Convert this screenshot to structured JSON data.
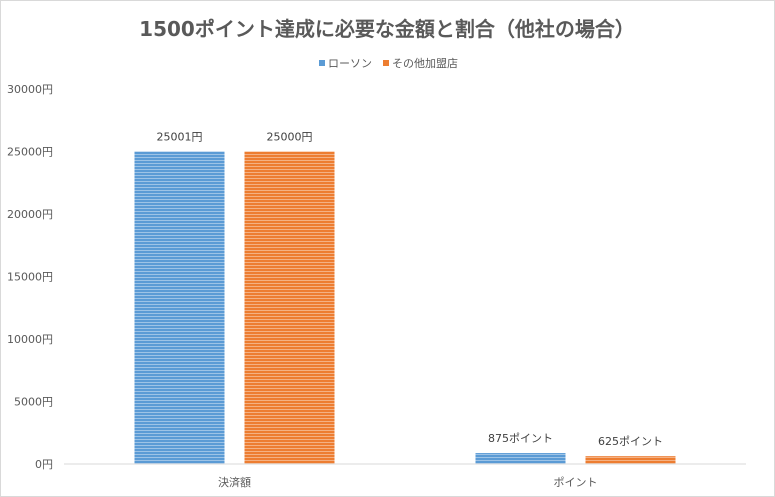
{
  "chart_data": {
    "type": "bar",
    "title": "1500ポイント達成に必要な金額と割合（他社の場合）",
    "categories": [
      "決済額",
      "ポイント"
    ],
    "series": [
      {
        "name": "ローソン",
        "color": "#5b9bd5",
        "values": [
          25001,
          875
        ],
        "labels": [
          "25001円",
          "875ポイント"
        ]
      },
      {
        "name": "その他加盟店",
        "color": "#ed7d31",
        "values": [
          25000,
          625
        ],
        "labels": [
          "25000円",
          "625ポイント"
        ]
      }
    ],
    "y_ticks": [
      "0円",
      "5000円",
      "10000円",
      "15000円",
      "20000円",
      "25000円",
      "30000円"
    ],
    "ylim": [
      0,
      30000
    ],
    "grid": false,
    "legend_position": "top"
  }
}
